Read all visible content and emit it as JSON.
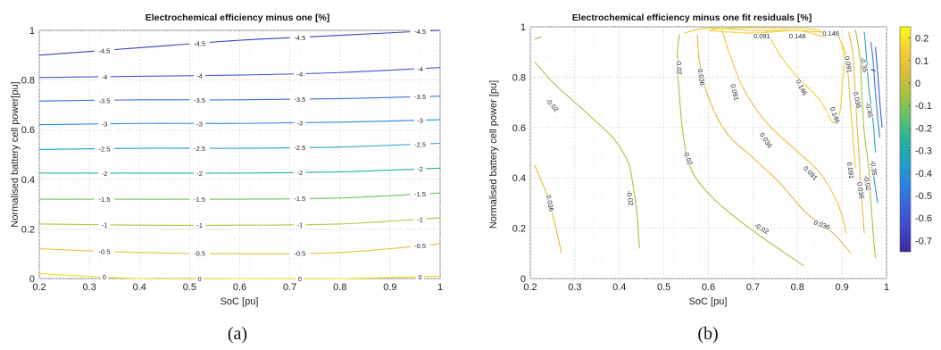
{
  "chart_data": [
    {
      "type": "contour",
      "panel": "(a)",
      "title": "Electrochemical efficiency minus one [%]",
      "xlabel": "SoC [pu]",
      "ylabel": "Normalised battery cell power[pu]",
      "xlim": [
        0.2,
        1
      ],
      "ylim": [
        0,
        1
      ],
      "xticks": [
        "0.2",
        "0.3",
        "0.4",
        "0.5",
        "0.6",
        "0.7",
        "0.8",
        "0.9",
        "1"
      ],
      "yticks": [
        "0",
        "0.2",
        "0.4",
        "0.6",
        "0.8",
        "1"
      ],
      "grid": true,
      "levels": [
        {
          "value": -4.5,
          "label": "-4.5",
          "color": "#3a3cc2",
          "y_at_soc": [
            0.9,
            0.93,
            0.96,
            0.98,
            1.0
          ]
        },
        {
          "value": -4,
          "label": "-4",
          "color": "#3e57d4",
          "y_at_soc": [
            0.81,
            0.815,
            0.82,
            0.83,
            0.85
          ]
        },
        {
          "value": -3.5,
          "label": "-3.5",
          "color": "#3a6fe0",
          "y_at_soc": [
            0.715,
            0.72,
            0.72,
            0.725,
            0.735
          ]
        },
        {
          "value": -3,
          "label": "-3",
          "color": "#2c8be0",
          "y_at_soc": [
            0.62,
            0.625,
            0.625,
            0.63,
            0.64
          ]
        },
        {
          "value": -2.5,
          "label": "-2.5",
          "color": "#1fa4c8",
          "y_at_soc": [
            0.52,
            0.525,
            0.525,
            0.53,
            0.545
          ]
        },
        {
          "value": -2,
          "label": "-2",
          "color": "#22b49a",
          "y_at_soc": [
            0.425,
            0.425,
            0.425,
            0.43,
            0.445
          ]
        },
        {
          "value": -1.5,
          "label": "-1.5",
          "color": "#72c25a",
          "y_at_soc": [
            0.32,
            0.32,
            0.32,
            0.325,
            0.345
          ]
        },
        {
          "value": -1,
          "label": "-1",
          "color": "#b9c23c",
          "y_at_soc": [
            0.22,
            0.215,
            0.215,
            0.22,
            0.245
          ]
        },
        {
          "value": -0.5,
          "label": "-0.5",
          "color": "#e5c33a",
          "y_at_soc": [
            0.12,
            0.105,
            0.1,
            0.105,
            0.14
          ]
        },
        {
          "value": 0,
          "label": "0",
          "color": "#f2e02a",
          "y_at_soc": [
            0.02,
            0.0,
            0.0,
            0.0,
            0.01
          ]
        }
      ],
      "soc_points": [
        0.2,
        0.4,
        0.6,
        0.8,
        1.0
      ]
    },
    {
      "type": "contour",
      "panel": "(b)",
      "title": "Electrochemical efficiency minus one fit residuals [%]",
      "xlabel": "SoC [pu]",
      "ylabel": "Normalised battery cell power [pu]",
      "xlim": [
        0.2,
        1
      ],
      "ylim": [
        0,
        1
      ],
      "xticks": [
        "0.2",
        "0.3",
        "0.4",
        "0.5",
        "0.6",
        "0.7",
        "0.8",
        "0.9",
        "1"
      ],
      "yticks": [
        "0",
        "0.2",
        "0.4",
        "0.6",
        "0.8",
        "1"
      ],
      "grid": true,
      "colorbar": {
        "min": -0.75,
        "max": 0.25,
        "ticks": [
          "0.2",
          "0.1",
          "0",
          "-0.1",
          "-0.2",
          "-0.3",
          "-0.4",
          "-0.5",
          "-0.6",
          "-0.7"
        ]
      },
      "level_labels": [
        "0.146",
        "0.091",
        "0.036",
        "-0.02",
        "-0.35",
        "-0.45"
      ],
      "contours": [
        {
          "value": -0.02,
          "color": "#a7c23e",
          "points": [
            [
              0.21,
              0.86
            ],
            [
              0.25,
              0.78
            ],
            [
              0.3,
              0.7
            ],
            [
              0.35,
              0.62
            ],
            [
              0.39,
              0.55
            ],
            [
              0.42,
              0.46
            ],
            [
              0.43,
              0.38
            ],
            [
              0.44,
              0.25
            ],
            [
              0.445,
              0.12
            ]
          ]
        },
        {
          "value": 0.036,
          "color": "#e2b944",
          "points": [
            [
              0.21,
              0.45
            ],
            [
              0.24,
              0.32
            ],
            [
              0.26,
              0.18
            ],
            [
              0.27,
              0.1
            ]
          ]
        },
        {
          "value": -0.02,
          "color": "#a7c23e",
          "points": [
            [
              0.21,
              0.95
            ],
            [
              0.225,
              0.96
            ]
          ]
        },
        {
          "value": -0.02,
          "color": "#a7c23e",
          "points": [
            [
              0.535,
              0.97
            ],
            [
              0.53,
              0.88
            ],
            [
              0.535,
              0.72
            ],
            [
              0.545,
              0.55
            ],
            [
              0.565,
              0.42
            ],
            [
              0.61,
              0.32
            ],
            [
              0.67,
              0.23
            ],
            [
              0.74,
              0.14
            ],
            [
              0.815,
              0.05
            ]
          ]
        },
        {
          "value": 0.036,
          "color": "#e2b944",
          "points": [
            [
              0.575,
              0.97
            ],
            [
              0.58,
              0.86
            ],
            [
              0.6,
              0.72
            ],
            [
              0.64,
              0.58
            ],
            [
              0.7,
              0.48
            ],
            [
              0.76,
              0.38
            ],
            [
              0.82,
              0.26
            ],
            [
              0.88,
              0.18
            ],
            [
              0.92,
              0.1
            ]
          ]
        },
        {
          "value": 0.091,
          "color": "#ecc23c",
          "points": [
            [
              0.63,
              0.99
            ],
            [
              0.65,
              0.88
            ],
            [
              0.68,
              0.75
            ],
            [
              0.73,
              0.62
            ],
            [
              0.79,
              0.52
            ],
            [
              0.85,
              0.42
            ],
            [
              0.89,
              0.3
            ],
            [
              0.91,
              0.18
            ]
          ]
        },
        {
          "value": 0.146,
          "color": "#f2d335",
          "points": [
            [
              0.73,
              0.985
            ],
            [
              0.76,
              0.89
            ],
            [
              0.8,
              0.8
            ],
            [
              0.85,
              0.71
            ],
            [
              0.88,
              0.62
            ],
            [
              0.895,
              0.66
            ],
            [
              0.9,
              0.76
            ],
            [
              0.905,
              0.86
            ],
            [
              0.9,
              0.93
            ]
          ]
        },
        {
          "value": 0.091,
          "color": "#ecc23c",
          "points": [
            [
              0.545,
              0.975
            ],
            [
              0.6,
              0.995
            ],
            [
              0.7,
              0.985
            ],
            [
              0.8,
              0.985
            ],
            [
              0.88,
              0.97
            ],
            [
              0.9,
              0.93
            ],
            [
              0.91,
              0.88
            ],
            [
              0.915,
              0.78
            ],
            [
              0.92,
              0.66
            ],
            [
              0.925,
              0.55
            ],
            [
              0.93,
              0.44
            ]
          ]
        },
        {
          "value": 0.146,
          "color": "#f2d335",
          "points": [
            [
              0.6,
              0.985
            ],
            [
              0.7,
              0.975
            ],
            [
              0.8,
              0.985
            ],
            [
              0.86,
              0.96
            ],
            [
              0.84,
              0.99
            ],
            [
              0.76,
              0.995
            ],
            [
              0.64,
              0.995
            ],
            [
              0.6,
              0.985
            ]
          ]
        },
        {
          "value": 0.036,
          "color": "#e2b944",
          "points": [
            [
              0.915,
              0.98
            ],
            [
              0.925,
              0.88
            ],
            [
              0.93,
              0.72
            ],
            [
              0.935,
              0.58
            ],
            [
              0.94,
              0.44
            ],
            [
              0.945,
              0.3
            ],
            [
              0.95,
              0.18
            ]
          ]
        },
        {
          "value": -0.02,
          "color": "#a7c23e",
          "points": [
            [
              0.93,
              0.99
            ],
            [
              0.94,
              0.88
            ],
            [
              0.945,
              0.72
            ],
            [
              0.95,
              0.58
            ],
            [
              0.96,
              0.44
            ],
            [
              0.965,
              0.3
            ],
            [
              0.97,
              0.18
            ],
            [
              0.975,
              0.08
            ]
          ]
        },
        {
          "value": -0.2,
          "color": "#2fa3c4",
          "points": [
            [
              0.95,
              0.98
            ],
            [
              0.955,
              0.88
            ],
            [
              0.96,
              0.76
            ],
            [
              0.97,
              0.62
            ],
            [
              0.975,
              0.5
            ]
          ]
        },
        {
          "value": -0.35,
          "color": "#3a7fe0",
          "points": [
            [
              0.965,
              0.94
            ],
            [
              0.97,
              0.86
            ],
            [
              0.975,
              0.74
            ],
            [
              0.98,
              0.64
            ],
            [
              0.985,
              0.56
            ]
          ]
        },
        {
          "value": -0.45,
          "color": "#3a5dd6",
          "points": [
            [
              0.975,
              0.92
            ],
            [
              0.98,
              0.82
            ],
            [
              0.985,
              0.7
            ],
            [
              0.99,
              0.6
            ]
          ]
        },
        {
          "value": -0.3,
          "color": "#2f8fdc",
          "points": [
            [
              0.97,
              0.42
            ],
            [
              0.975,
              0.36
            ],
            [
              0.98,
              0.3
            ]
          ]
        },
        {
          "value": -0.7,
          "color": "#2a2e9e",
          "points": [
            [
              0.965,
              0.83
            ],
            [
              0.975,
              0.825
            ]
          ]
        }
      ]
    }
  ],
  "captions": {
    "a": "(a)",
    "b": "(b)"
  }
}
